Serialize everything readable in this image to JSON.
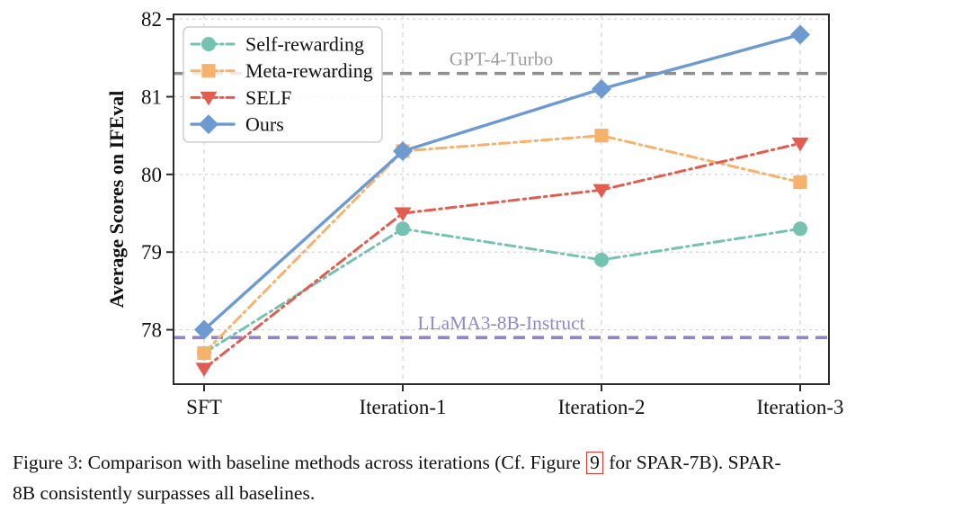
{
  "figure": {
    "caption": {
      "prefix": "Figure 3: Comparison with baseline methods across iterations (Cf. Figure ",
      "figure_link": "9",
      "middle": " for SPAR-7B). SPAR-",
      "line2": "8B consistently surpasses all baselines.",
      "link_box_color": "#e0392e"
    }
  },
  "chart_data": {
    "type": "line",
    "title": "",
    "xlabel": "",
    "ylabel": "Average Scores on IFEval",
    "categories": [
      "SFT",
      "Iteration-1",
      "Iteration-2",
      "Iteration-3"
    ],
    "yticks": [
      78,
      79,
      80,
      81,
      82
    ],
    "ylim": [
      77.3,
      82.06
    ],
    "grid": true,
    "legend_position": "upper-left",
    "series": [
      {
        "name": "Self-rewarding",
        "values": [
          77.7,
          79.3,
          78.9,
          79.3
        ],
        "color": "#76c2b0",
        "marker": "circle",
        "linestyle": "dashdot"
      },
      {
        "name": "Meta-rewarding",
        "values": [
          77.7,
          80.3,
          80.5,
          79.9
        ],
        "color": "#f6b26b",
        "marker": "square",
        "linestyle": "dashdot"
      },
      {
        "name": "SELF",
        "values": [
          77.5,
          79.5,
          79.8,
          80.4
        ],
        "color": "#e25c4f",
        "marker": "triangle-down",
        "linestyle": "dashdot"
      },
      {
        "name": "Ours",
        "values": [
          78.0,
          80.3,
          81.1,
          81.8
        ],
        "color": "#6d9bd1",
        "marker": "diamond",
        "linestyle": "solid"
      }
    ],
    "reference_lines": [
      {
        "label": "GPT-4-Turbo",
        "value": 81.3,
        "color": "#8f8f8f",
        "label_color": "#9e9e9e"
      },
      {
        "label": "LLaMA3-8B-Instruct",
        "value": 77.9,
        "color": "#8e86c8",
        "label_color": "#9188cb"
      }
    ],
    "axis_color": "#2b2b2b",
    "grid_color": "#d2d2d2",
    "tick_label_color": "#111111"
  }
}
